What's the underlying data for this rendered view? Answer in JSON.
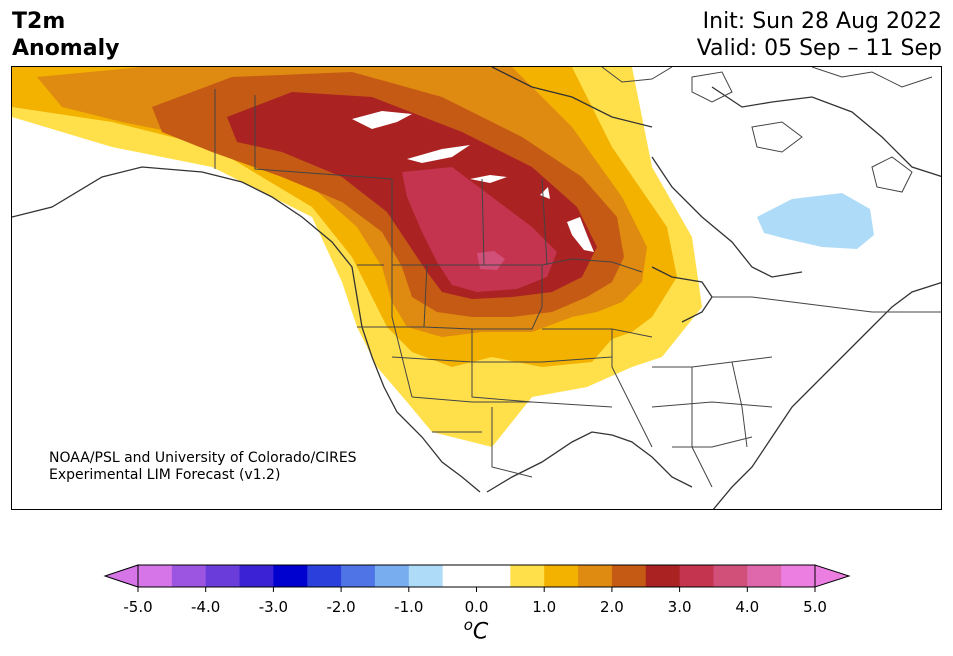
{
  "header": {
    "title_line1": "T2m",
    "title_line2": "Anomaly",
    "init": "Init: Sun 28 Aug 2022",
    "valid": "Valid: 05 Sep – 11 Sep"
  },
  "credit": {
    "line1": "NOAA/PSL and University of Colorado/CIRES",
    "line2": "Experimental LIM Forecast (v1.2)"
  },
  "colorbar": {
    "ticks": [
      "-5.0",
      "-4.0",
      "-3.0",
      "-2.0",
      "-1.0",
      "0.0",
      "1.0",
      "2.0",
      "3.0",
      "4.0",
      "5.0"
    ],
    "unit_sup": "o",
    "unit": "C",
    "colors": [
      "#d675e8",
      "#9b55e0",
      "#6a3ddb",
      "#3b22d4",
      "#0000cf",
      "#2a3fdc",
      "#4f74e6",
      "#78aef0",
      "#aedcf8",
      "#ffffff",
      "#ffffff",
      "#ffe04a",
      "#f3b200",
      "#df8a10",
      "#c55a15",
      "#aa2222",
      "#c4344e",
      "#d1507a",
      "#df68ad",
      "#eb7ee0"
    ],
    "under_color": "#d675e8",
    "over_color": "#eb7ee0"
  }
}
